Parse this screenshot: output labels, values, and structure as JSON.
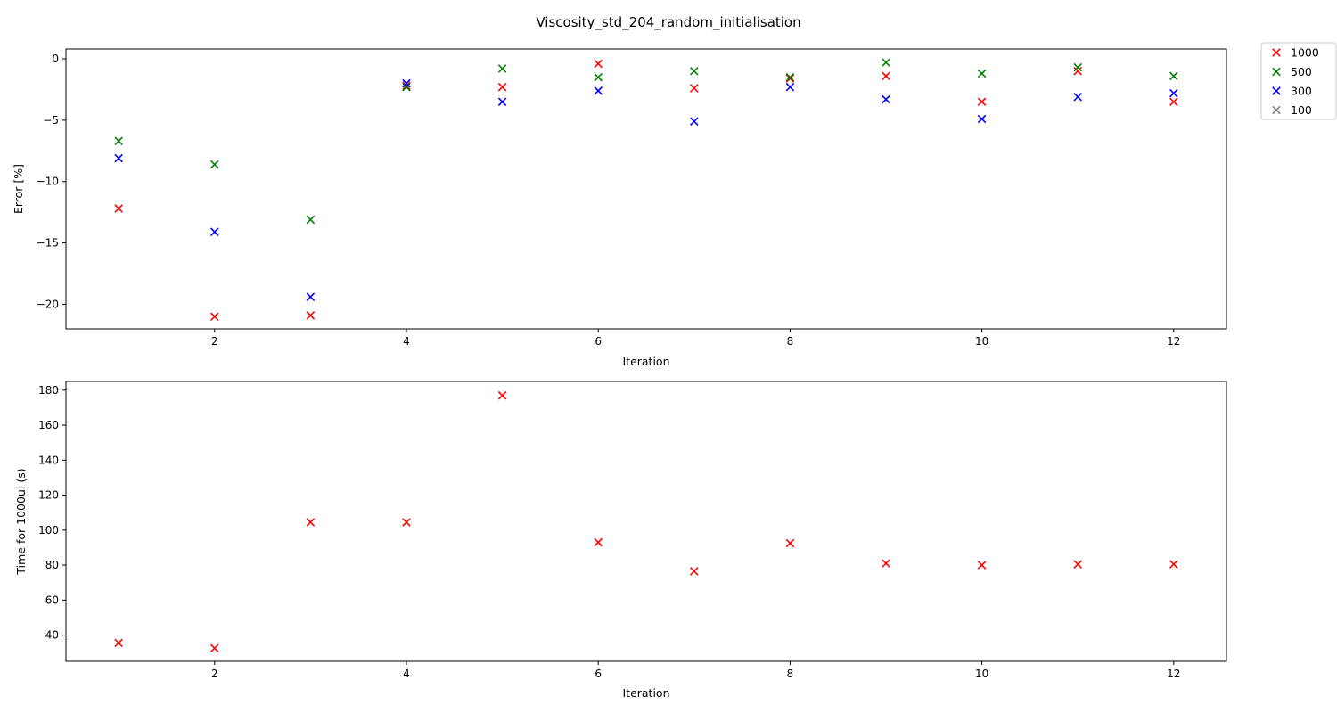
{
  "figure": {
    "title": "Viscosity_std_204_random_initialisation"
  },
  "legend": {
    "placement": "outside-top-right",
    "entries": [
      {
        "label": "1000",
        "color": "#ff0000"
      },
      {
        "label": "500",
        "color": "#008000"
      },
      {
        "label": "300",
        "color": "#0000ff"
      },
      {
        "label": "100",
        "color": "#808080"
      }
    ]
  },
  "chart_data": [
    {
      "type": "scatter",
      "title": "",
      "xlabel": "Iteration",
      "ylabel": "Error [%]",
      "xlim": [
        0.45,
        12.55
      ],
      "ylim": [
        -22.0,
        0.8
      ],
      "xticks": [
        2,
        4,
        6,
        8,
        10,
        12
      ],
      "yticks": [
        -20,
        -15,
        -10,
        -5,
        0
      ],
      "ytick_labels": [
        "−20",
        "−15",
        "−10",
        "−5",
        "0"
      ],
      "grid": false,
      "series": [
        {
          "name": "1000",
          "color": "#ff0000",
          "x": [
            1,
            2,
            3,
            4,
            5,
            6,
            7,
            8,
            9,
            10,
            11,
            12
          ],
          "y": [
            -12.2,
            -21.0,
            -20.9,
            -2.2,
            -2.3,
            -0.4,
            -2.4,
            -1.6,
            -1.4,
            -3.5,
            -1.0,
            -3.5
          ]
        },
        {
          "name": "500",
          "color": "#008000",
          "x": [
            1,
            2,
            3,
            4,
            5,
            6,
            7,
            8,
            9,
            10,
            11,
            12
          ],
          "y": [
            -6.7,
            -8.6,
            -13.1,
            -2.3,
            -0.8,
            -1.5,
            -1.0,
            -1.5,
            -0.3,
            -1.2,
            -0.7,
            -1.4
          ]
        },
        {
          "name": "300",
          "color": "#0000ff",
          "x": [
            1,
            2,
            3,
            4,
            5,
            6,
            7,
            8,
            9,
            10,
            11,
            12
          ],
          "y": [
            -8.1,
            -14.1,
            -19.4,
            -2.0,
            -3.5,
            -2.6,
            -5.1,
            -2.3,
            -3.3,
            -4.9,
            -3.1,
            -2.8
          ]
        },
        {
          "name": "100",
          "color": "#808080",
          "x": [],
          "y": []
        }
      ]
    },
    {
      "type": "scatter",
      "title": "",
      "xlabel": "Iteration",
      "ylabel": "Time for 1000ul (s)",
      "xlim": [
        0.45,
        12.55
      ],
      "ylim": [
        25.0,
        185.0
      ],
      "xticks": [
        2,
        4,
        6,
        8,
        10,
        12
      ],
      "yticks": [
        40,
        60,
        80,
        100,
        120,
        140,
        160,
        180
      ],
      "ytick_labels": [
        "40",
        "60",
        "80",
        "100",
        "120",
        "140",
        "160",
        "180"
      ],
      "grid": false,
      "series": [
        {
          "name": "1000",
          "color": "#ff0000",
          "x": [
            1,
            2,
            3,
            4,
            5,
            6,
            7,
            8,
            9,
            10,
            11,
            12
          ],
          "y": [
            35.5,
            32.5,
            104.5,
            104.5,
            177.0,
            93.0,
            76.5,
            92.5,
            81.0,
            80.0,
            80.5,
            80.5
          ]
        }
      ]
    }
  ]
}
